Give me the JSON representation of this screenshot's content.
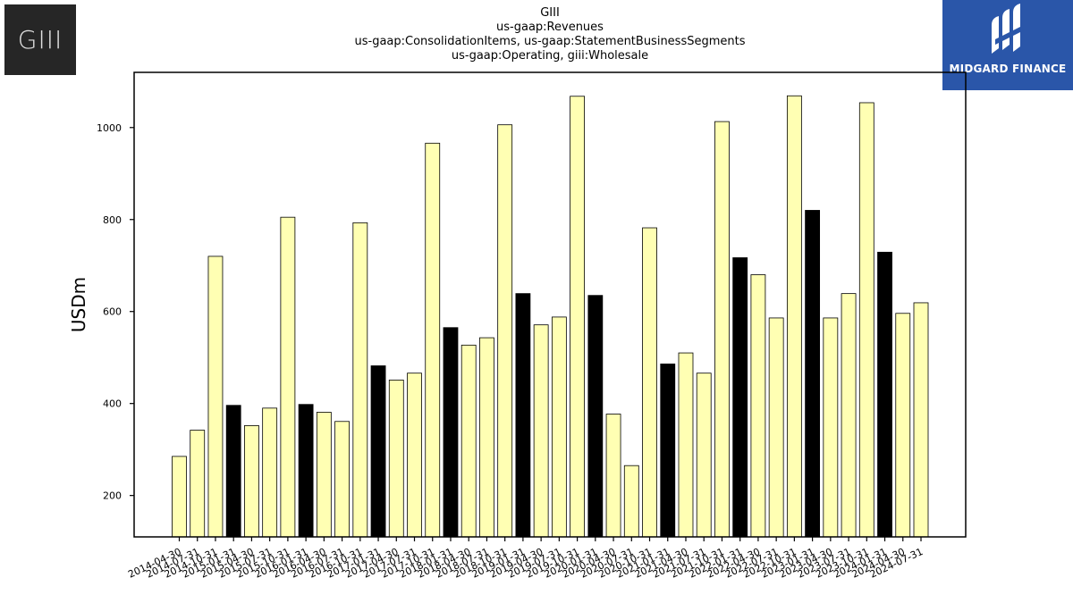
{
  "logos": {
    "left_text": "GIII",
    "right_text": "MIDGARD FINANCE",
    "right_bg": "#2a56a9",
    "left_bg": "#262626"
  },
  "chart_data": {
    "type": "bar",
    "title_lines": [
      "GIII",
      "us-gaap:Revenues",
      "us-gaap:ConsolidationItems, us-gaap:StatementBusinessSegments",
      "us-gaap:Operating, giii:Wholesale"
    ],
    "ylabel": "USDm",
    "xlabel": "",
    "ylim": [
      110,
      1120
    ],
    "yticks": [
      200,
      400,
      600,
      800,
      1000
    ],
    "grid": false,
    "colors": {
      "normal": "#ffffb3",
      "highlight": "#000000",
      "edge": "#000000"
    },
    "categories": [
      "2014-04-30",
      "2014-07-31",
      "2014-10-31",
      "2015-01-31",
      "2015-04-30",
      "2015-07-31",
      "2015-10-31",
      "2016-01-31",
      "2016-04-30",
      "2016-07-31",
      "2016-10-31",
      "2017-01-31",
      "2017-04-30",
      "2017-07-31",
      "2017-10-31",
      "2018-01-31",
      "2018-04-30",
      "2018-07-31",
      "2018-10-31",
      "2019-01-31",
      "2019-04-30",
      "2019-07-31",
      "2019-10-31",
      "2020-01-31",
      "2020-04-30",
      "2020-07-31",
      "2020-10-31",
      "2021-01-31",
      "2021-04-30",
      "2021-07-31",
      "2021-10-31",
      "2022-01-31",
      "2022-04-30",
      "2022-07-31",
      "2022-10-31",
      "2023-01-31",
      "2023-04-30",
      "2023-07-31",
      "2023-10-31",
      "2024-01-31",
      "2024-04-30",
      "2024-07-31"
    ],
    "values": [
      285,
      342,
      720,
      396,
      352,
      390,
      805,
      398,
      381,
      361,
      793,
      482,
      451,
      466,
      966,
      565,
      527,
      543,
      1006,
      639,
      571,
      588,
      1068,
      635,
      377,
      265,
      782,
      486,
      510,
      466,
      1013,
      717,
      680,
      586,
      1069,
      820,
      586,
      639,
      1054,
      729,
      596,
      619
    ],
    "highlighted": [
      false,
      false,
      false,
      true,
      false,
      false,
      false,
      true,
      false,
      false,
      false,
      true,
      false,
      false,
      false,
      true,
      false,
      false,
      false,
      true,
      false,
      false,
      false,
      true,
      false,
      false,
      false,
      true,
      false,
      false,
      false,
      true,
      false,
      false,
      false,
      true,
      false,
      false,
      false,
      true,
      false,
      false
    ]
  }
}
